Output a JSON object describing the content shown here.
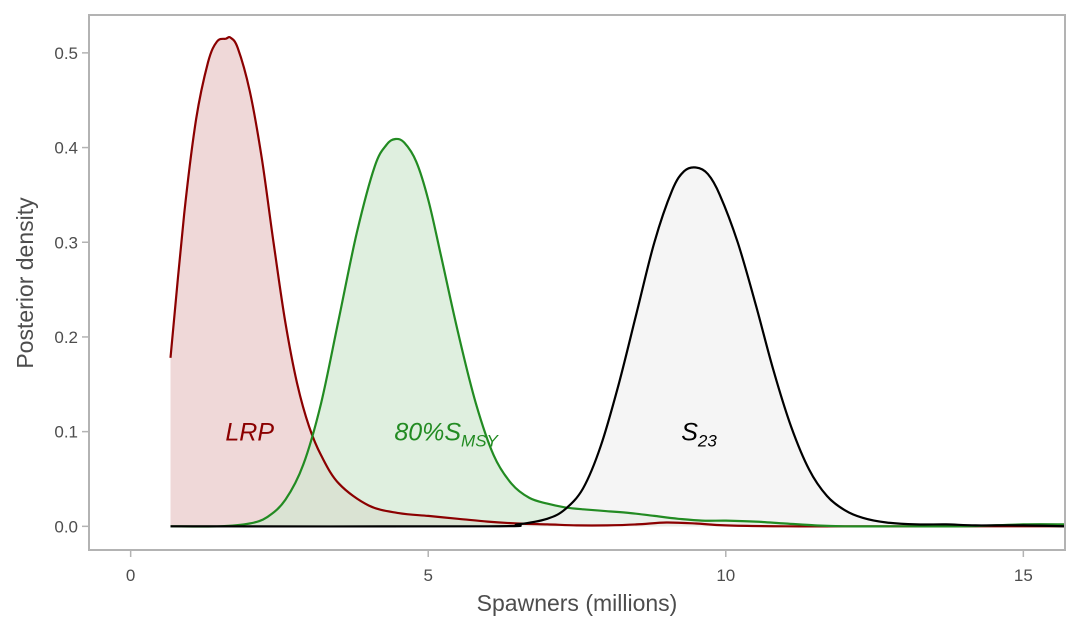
{
  "chart_data": {
    "type": "area",
    "title": "",
    "xlabel": "Spawners (millions)",
    "ylabel": "Posterior density",
    "xlim": [
      -0.7,
      15.7
    ],
    "ylim": [
      -0.025,
      0.54
    ],
    "x_ticks": [
      0,
      5,
      10,
      15
    ],
    "x_tick_labels": [
      "0",
      "5",
      "10",
      "15"
    ],
    "y_ticks": [
      0.0,
      0.1,
      0.2,
      0.3,
      0.4,
      0.5
    ],
    "y_tick_labels": [
      "0.0",
      "0.1",
      "0.2",
      "0.3",
      "0.4",
      "0.5"
    ],
    "grid": false,
    "legend": "none",
    "series": [
      {
        "label": "LRP",
        "label_sub": "",
        "label_pos": [
          2.0,
          0.1
        ],
        "color": "#8b0000",
        "fill": "#e8c8c8",
        "x": [
          0.67,
          0.9,
          1.1,
          1.3,
          1.45,
          1.6,
          1.68,
          1.8,
          2.0,
          2.2,
          2.4,
          2.6,
          2.8,
          3.0,
          3.2,
          3.5,
          4.0,
          4.5,
          5.0,
          5.5,
          6.0,
          6.5,
          7.0,
          7.5,
          8.0,
          8.5,
          9.0,
          9.5,
          10.0,
          11.0,
          12.0,
          13.0,
          14.0,
          15.0,
          15.7
        ],
        "y": [
          0.178,
          0.33,
          0.43,
          0.49,
          0.512,
          0.515,
          0.516,
          0.505,
          0.46,
          0.39,
          0.3,
          0.215,
          0.15,
          0.105,
          0.075,
          0.045,
          0.022,
          0.014,
          0.011,
          0.008,
          0.005,
          0.003,
          0.002,
          0.001,
          0.001,
          0.002,
          0.004,
          0.003,
          0.001,
          0.0,
          0.0,
          0.0,
          0.0,
          0.0,
          0.0
        ]
      },
      {
        "label": "80%S",
        "label_sub": "MSY",
        "label_pos": [
          5.3,
          0.1
        ],
        "color": "#228b22",
        "fill": "#d2e8d2",
        "x": [
          0.67,
          1.5,
          2.0,
          2.3,
          2.6,
          2.9,
          3.2,
          3.5,
          3.8,
          4.1,
          4.3,
          4.45,
          4.6,
          4.8,
          5.0,
          5.2,
          5.5,
          5.8,
          6.1,
          6.4,
          6.7,
          7.0,
          7.3,
          7.6,
          8.0,
          8.4,
          8.8,
          9.2,
          9.6,
          10.0,
          10.5,
          11.0,
          11.5,
          12.0,
          13.0,
          14.0,
          15.0,
          15.7
        ],
        "y": [
          0.0,
          0.0,
          0.003,
          0.01,
          0.028,
          0.065,
          0.13,
          0.22,
          0.31,
          0.38,
          0.403,
          0.409,
          0.405,
          0.385,
          0.345,
          0.29,
          0.205,
          0.13,
          0.075,
          0.045,
          0.03,
          0.024,
          0.02,
          0.018,
          0.016,
          0.014,
          0.011,
          0.008,
          0.006,
          0.006,
          0.005,
          0.003,
          0.001,
          0.0,
          0.0,
          0.0,
          0.002,
          0.002
        ]
      },
      {
        "label": "S",
        "label_sub": "23",
        "label_pos": [
          9.55,
          0.1
        ],
        "color": "#000000",
        "fill": "#f1f1f1",
        "x": [
          0.67,
          6.0,
          6.5,
          7.0,
          7.3,
          7.6,
          7.9,
          8.2,
          8.5,
          8.8,
          9.1,
          9.3,
          9.5,
          9.7,
          9.9,
          10.2,
          10.5,
          10.8,
          11.1,
          11.4,
          11.7,
          12.0,
          12.3,
          12.7,
          13.2,
          13.7,
          14.2,
          15.0,
          15.7
        ],
        "y": [
          0.0,
          0.0,
          0.002,
          0.008,
          0.018,
          0.04,
          0.085,
          0.15,
          0.225,
          0.3,
          0.355,
          0.375,
          0.379,
          0.372,
          0.35,
          0.3,
          0.235,
          0.165,
          0.105,
          0.06,
          0.032,
          0.017,
          0.009,
          0.004,
          0.002,
          0.002,
          0.001,
          0.001,
          0.0
        ]
      }
    ]
  }
}
